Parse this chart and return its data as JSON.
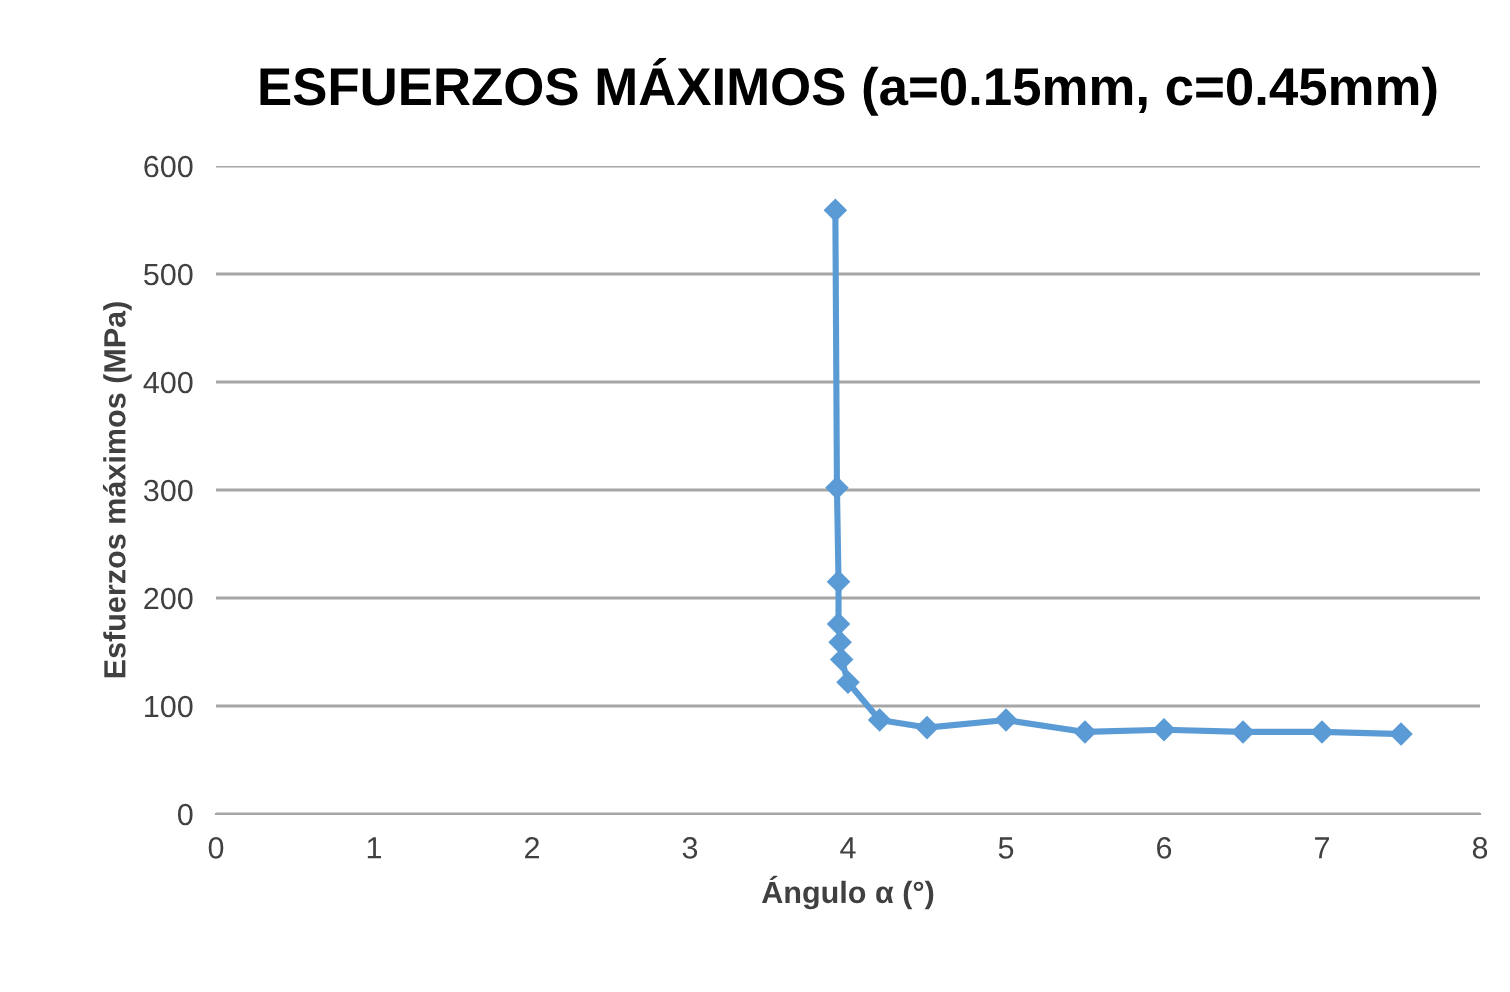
{
  "chart_data": {
    "type": "line",
    "title": "ESFUERZOS MÁXIMOS (a=0.15mm, c=0.45mm)",
    "xlabel": "Ángulo α (°)",
    "ylabel": "Esfuerzos máximos (MPa)",
    "series": [
      {
        "color": "#5b9bd5",
        "x": [
          3.92,
          3.93,
          3.94,
          3.94,
          3.95,
          3.96,
          4.0,
          4.2,
          4.5,
          5,
          5.5,
          6,
          6.5,
          7,
          7.5
        ],
        "values": [
          559,
          302,
          215,
          176,
          159,
          143,
          122,
          87,
          80,
          87,
          76,
          78,
          76,
          76,
          74
        ]
      }
    ],
    "xlim": [
      0,
      8
    ],
    "xticks": [
      0,
      1,
      2,
      3,
      4,
      5,
      6,
      7,
      8
    ],
    "ylim": [
      0,
      600
    ],
    "yticks": [
      0,
      100,
      200,
      300,
      400,
      500,
      600
    ],
    "grid": "y",
    "marker": "diamond",
    "line_style": "solid"
  }
}
